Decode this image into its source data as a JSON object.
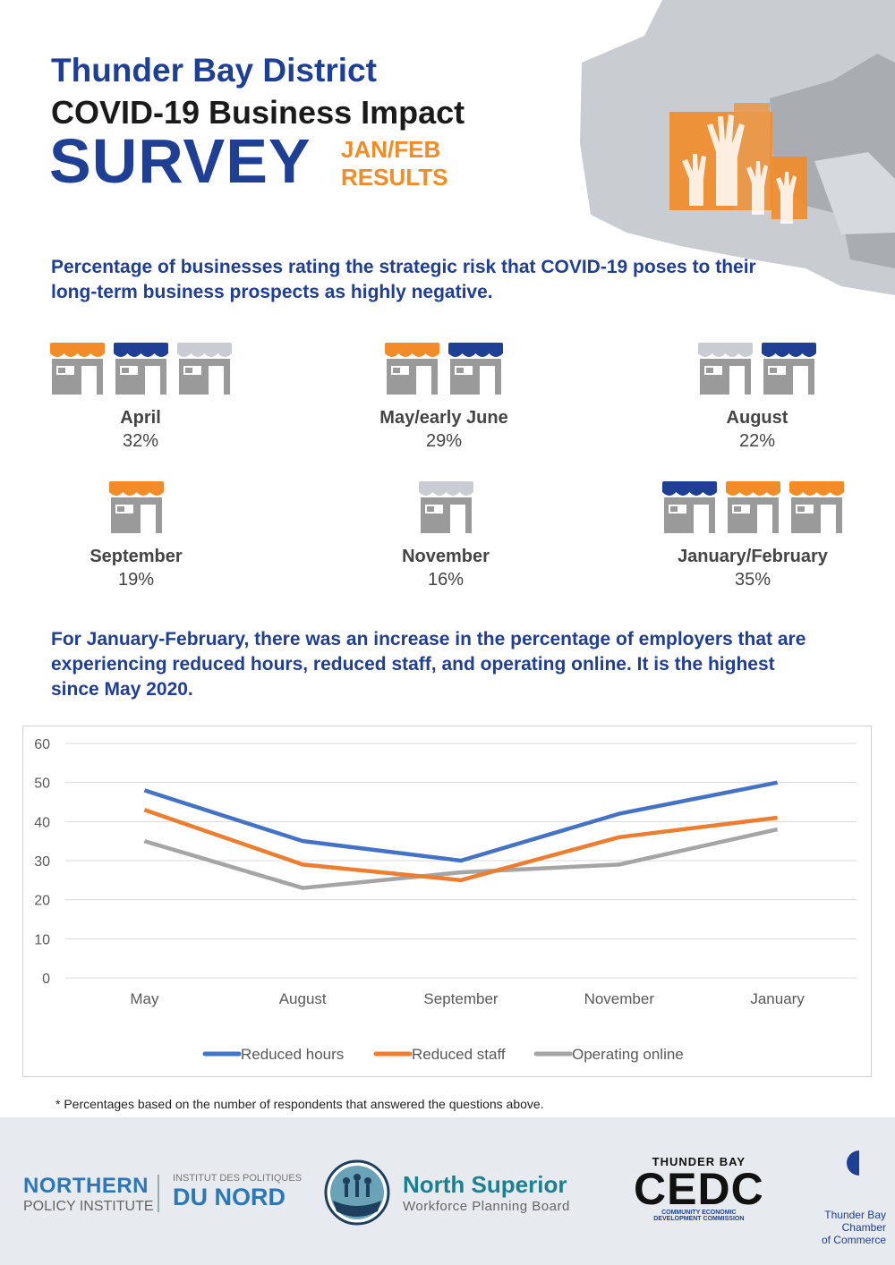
{
  "header": {
    "line1": "Thunder Bay District",
    "line2": "COVID-19 Business Impact",
    "line3": "SURVEY",
    "badge1": "JAN/FEB",
    "badge2": "RESULTS"
  },
  "section1_heading": "Percentage of businesses rating the strategic risk that COVID-19 poses to their long-term business prospects as highly negative.",
  "stats": [
    {
      "label": "April",
      "value": "32%",
      "awnings": [
        "orange",
        "blue",
        "gray"
      ]
    },
    {
      "label": "May/early June",
      "value": "29%",
      "awnings": [
        "orange",
        "blue"
      ]
    },
    {
      "label": "August",
      "value": "22%",
      "awnings": [
        "gray",
        "blue"
      ]
    },
    {
      "label": "September",
      "value": "19%",
      "awnings": [
        "orange"
      ]
    },
    {
      "label": "November",
      "value": "16%",
      "awnings": [
        "gray"
      ]
    },
    {
      "label": "January/February",
      "value": "35%",
      "awnings": [
        "blue",
        "orange",
        "orange"
      ]
    }
  ],
  "section2_heading": "For January-February, there was an increase in the percentage of employers that are experiencing reduced hours, reduced staff, and operating online. It is the highest since May 2020.",
  "colors": {
    "blue": "#1f3f94",
    "orange": "#f28c28",
    "gray": "#c9cdd3",
    "building": "#9a9a9a",
    "series_hours": "#4472c4",
    "series_staff": "#ed7d31",
    "series_online": "#a5a5a5"
  },
  "chart_data": {
    "type": "line",
    "categories": [
      "May",
      "August",
      "September",
      "November",
      "January"
    ],
    "series": [
      {
        "name": "Reduced hours",
        "values": [
          48,
          35,
          30,
          42,
          50
        ]
      },
      {
        "name": "Reduced staff",
        "values": [
          43,
          29,
          25,
          36,
          41
        ]
      },
      {
        "name": "Operating online",
        "values": [
          35,
          23,
          27,
          29,
          38
        ]
      }
    ],
    "yticks": [
      "0",
      "10",
      "20",
      "30",
      "40",
      "50",
      "60"
    ],
    "ylim": [
      0,
      60
    ],
    "grid": true,
    "legend_position": "bottom"
  },
  "footnote": "* Percentages based on the number of respondents that answered the questions above.",
  "footer": {
    "npi_line1": "NORTHERN",
    "npi_line2": "POLICY INSTITUTE",
    "idn_line1": "INSTITUT DES POLITIQUES",
    "idn_line2": "DU NORD",
    "nsw_line1": "North Superior",
    "nsw_line2": "Workforce Planning Board",
    "cedc_top": "THUNDER BAY",
    "cedc_main": "CEDC",
    "cedc_sub1": "COMMUNITY ECONOMIC",
    "cedc_sub2": "DEVELOPMENT COMMISSION",
    "tbc_line1": "Thunder Bay",
    "tbc_line2": "Chamber",
    "tbc_line3": "of Commerce"
  }
}
